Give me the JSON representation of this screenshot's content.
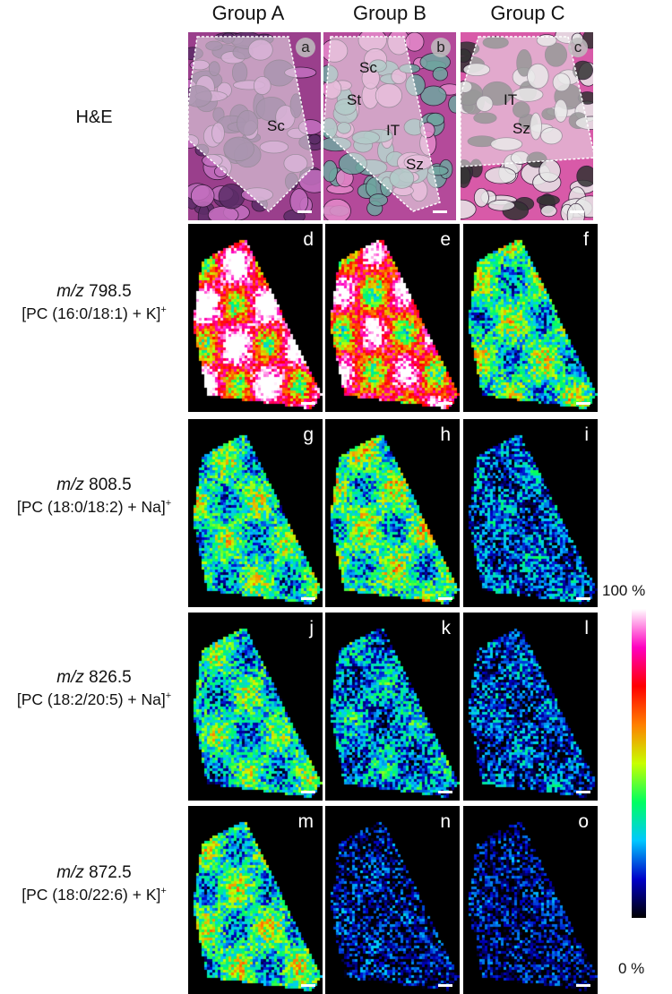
{
  "columns": [
    "Group A",
    "Group B",
    "Group C"
  ],
  "rows": [
    {
      "mz_prefix": "m/z",
      "mz": "798.5",
      "species": "[PC (16:0/18:1) + K]",
      "charge": "+",
      "letters": [
        "d",
        "e",
        "f"
      ],
      "intensity": [
        0.92,
        0.82,
        0.38
      ]
    },
    {
      "mz_prefix": "m/z",
      "mz": "808.5",
      "species": "[PC (18:0/18:2) + Na]",
      "charge": "+",
      "letters": [
        "g",
        "h",
        "i"
      ],
      "intensity": [
        0.36,
        0.4,
        0.18
      ]
    },
    {
      "mz_prefix": "m/z",
      "mz": "826.5",
      "species": "[PC (18:2/20:5) + Na]",
      "charge": "+",
      "letters": [
        "j",
        "k",
        "l"
      ],
      "intensity": [
        0.34,
        0.24,
        0.15
      ]
    },
    {
      "mz_prefix": "m/z",
      "mz": "872.5",
      "species": "[PC (18:0/22:6) + K]",
      "charge": "+",
      "letters": [
        "m",
        "n",
        "o"
      ],
      "intensity": [
        0.38,
        0.08,
        0.06
      ]
    }
  ],
  "he": {
    "label": "H&E",
    "letters": [
      "a",
      "b",
      "c"
    ],
    "annotations": [
      [
        "Sc"
      ],
      [
        "Sc",
        "St",
        "IT",
        "Sz"
      ],
      [
        "IT",
        "Sz"
      ]
    ]
  },
  "colorbar": {
    "max_label": "100 %",
    "min_label": "0 %",
    "stops": [
      "#000000",
      "#0000c8",
      "#00c8ff",
      "#00ff60",
      "#c8ff00",
      "#ff8000",
      "#ff0000",
      "#ff00c0",
      "#ffffff"
    ]
  }
}
